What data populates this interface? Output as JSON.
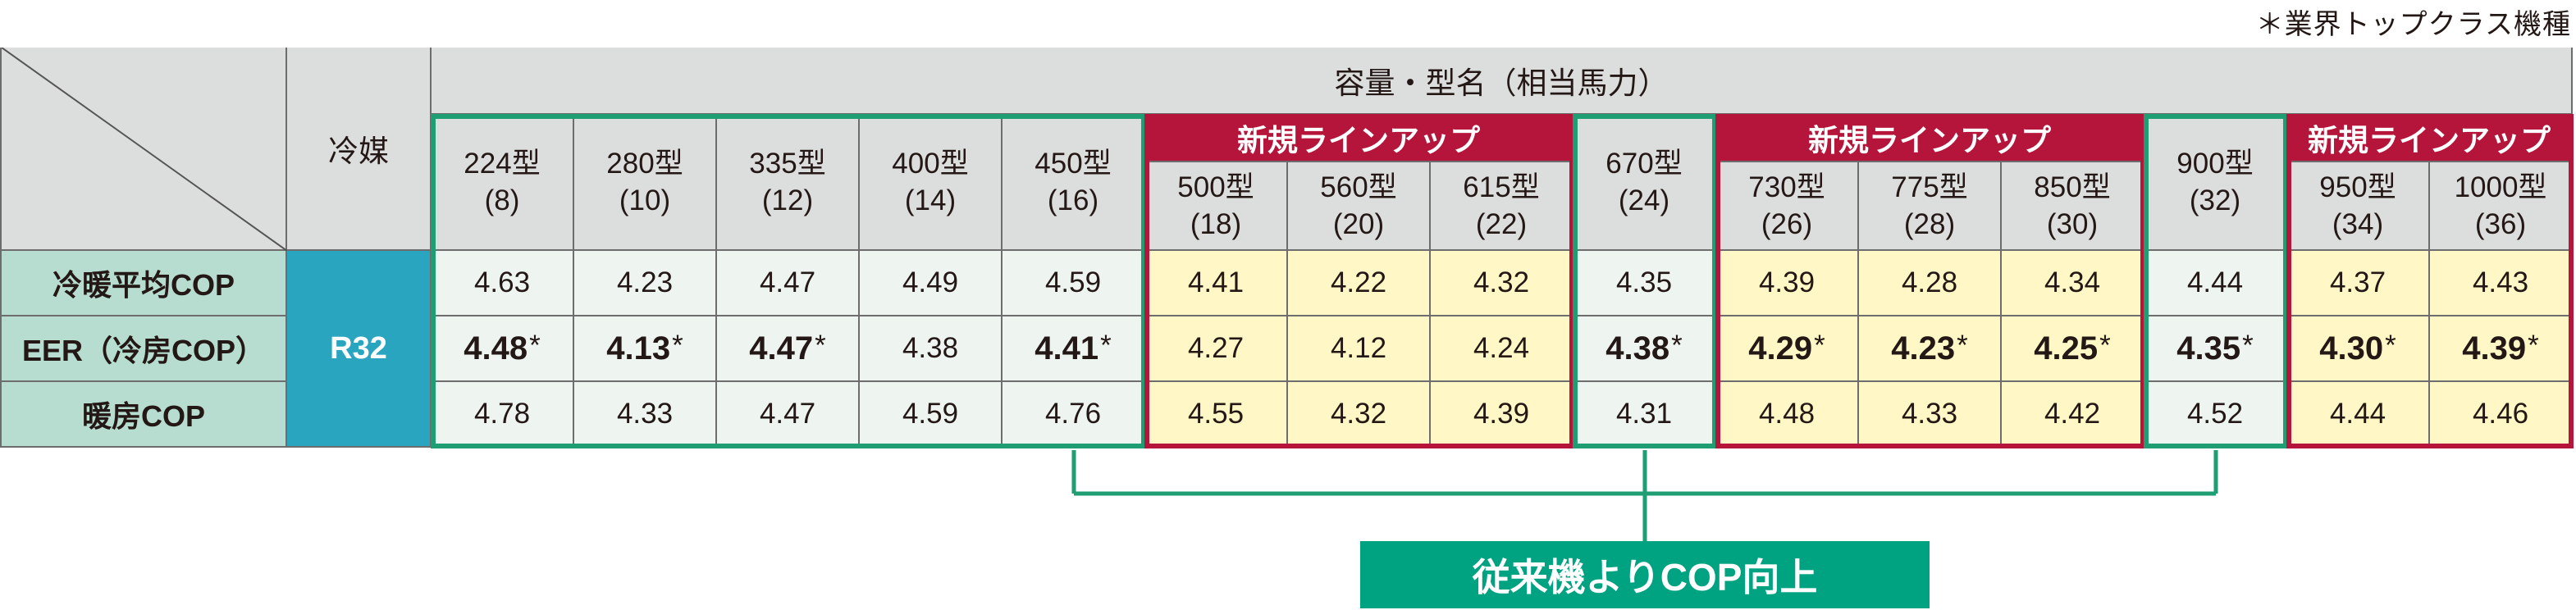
{
  "note": "＊業界トップクラス機種",
  "header": {
    "capacity": "容量・型名（相当馬力）",
    "refrigerant": "冷媒",
    "new_lineup": "新規ラインアップ"
  },
  "refrigerant_value": "R32",
  "row_labels": [
    "冷暖平均COP",
    "EER（冷房COP）",
    "暖房COP"
  ],
  "models": [
    {
      "name": "224型",
      "hp": "(8)",
      "type": "existing",
      "cop": "4.63",
      "eer": "4.48",
      "eer_star": true,
      "heat": "4.78"
    },
    {
      "name": "280型",
      "hp": "(10)",
      "type": "existing",
      "cop": "4.23",
      "eer": "4.13",
      "eer_star": true,
      "heat": "4.33"
    },
    {
      "name": "335型",
      "hp": "(12)",
      "type": "existing",
      "cop": "4.47",
      "eer": "4.47",
      "eer_star": true,
      "heat": "4.47"
    },
    {
      "name": "400型",
      "hp": "(14)",
      "type": "existing",
      "cop": "4.49",
      "eer": "4.38",
      "eer_star": false,
      "heat": "4.59"
    },
    {
      "name": "450型",
      "hp": "(16)",
      "type": "existing",
      "cop": "4.59",
      "eer": "4.41",
      "eer_star": true,
      "heat": "4.76"
    },
    {
      "name": "500型",
      "hp": "(18)",
      "type": "new",
      "cop": "4.41",
      "eer": "4.27",
      "eer_star": false,
      "heat": "4.55"
    },
    {
      "name": "560型",
      "hp": "(20)",
      "type": "new",
      "cop": "4.22",
      "eer": "4.12",
      "eer_star": false,
      "heat": "4.32"
    },
    {
      "name": "615型",
      "hp": "(22)",
      "type": "new",
      "cop": "4.32",
      "eer": "4.24",
      "eer_star": false,
      "heat": "4.39"
    },
    {
      "name": "670型",
      "hp": "(24)",
      "type": "existing",
      "cop": "4.35",
      "eer": "4.38",
      "eer_star": true,
      "heat": "4.31"
    },
    {
      "name": "730型",
      "hp": "(26)",
      "type": "new",
      "cop": "4.39",
      "eer": "4.29",
      "eer_star": true,
      "heat": "4.48"
    },
    {
      "name": "775型",
      "hp": "(28)",
      "type": "new",
      "cop": "4.28",
      "eer": "4.23",
      "eer_star": true,
      "heat": "4.33"
    },
    {
      "name": "850型",
      "hp": "(30)",
      "type": "new",
      "cop": "4.34",
      "eer": "4.25",
      "eer_star": true,
      "heat": "4.42"
    },
    {
      "name": "900型",
      "hp": "(32)",
      "type": "existing",
      "cop": "4.44",
      "eer": "4.35",
      "eer_star": true,
      "heat": "4.52"
    },
    {
      "name": "950型",
      "hp": "(34)",
      "type": "new",
      "cop": "4.37",
      "eer": "4.30",
      "eer_star": true,
      "heat": "4.44"
    },
    {
      "name": "1000型",
      "hp": "(36)",
      "type": "new",
      "cop": "4.43",
      "eer": "4.39",
      "eer_star": true,
      "heat": "4.46"
    }
  ],
  "star_mark": "*",
  "improvement_label": "従来機よりCOP向上",
  "colors": {
    "existing_frame": "#1e9e72",
    "new_frame": "#b5153a",
    "new_cell_bg": "#fff8c6",
    "existing_cell_bg": "#eef5f1",
    "refrigerant_bg": "#2aa5c0",
    "label_bg": "#b7ddd0",
    "header_bg": "#dcdddd",
    "improve_bg": "#00a381"
  }
}
